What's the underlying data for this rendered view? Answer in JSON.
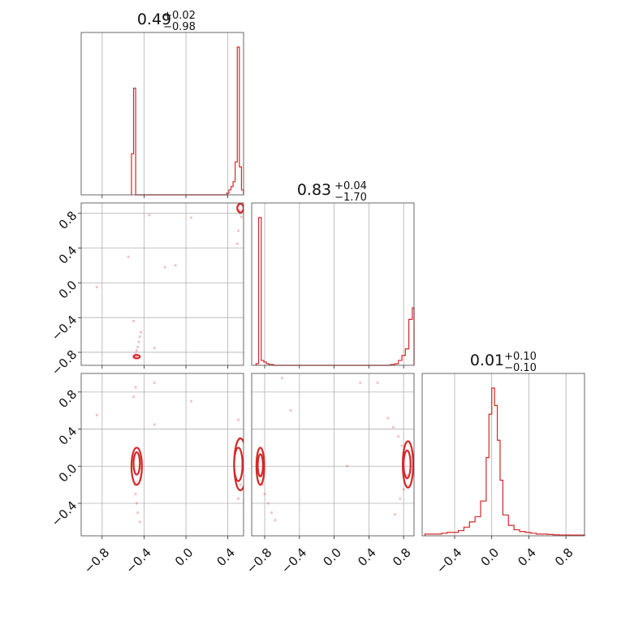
{
  "figure": {
    "type": "corner",
    "line_color": "#d62728"
  },
  "chart_data": [
    {
      "panel": "hist-0",
      "type": "bar",
      "title": {
        "value": "0.49",
        "upper": "+0.02",
        "lower": "−0.98"
      },
      "xlim": [
        -1.0,
        0.55
      ],
      "xticks": [
        -0.8,
        -0.4,
        0.0,
        0.4
      ],
      "bins_x": [
        -0.52,
        -0.5,
        -0.48,
        -0.46,
        0.39,
        0.41,
        0.43,
        0.45,
        0.47,
        0.49,
        0.51,
        0.53,
        0.55
      ],
      "counts": [
        0.25,
        0.65,
        0.0,
        0.0,
        0.01,
        0.03,
        0.05,
        0.08,
        0.2,
        0.9,
        0.17,
        0.03
      ]
    },
    {
      "panel": "hist-1",
      "type": "bar",
      "title": {
        "value": "0.83",
        "upper": "+0.04",
        "lower": "−1.70"
      },
      "xlim": [
        -0.95,
        0.92
      ],
      "xticks": [
        -0.8,
        -0.4,
        0.0,
        0.4,
        0.8
      ],
      "bins_x": [
        -0.9,
        -0.87,
        -0.84,
        -0.81,
        -0.78,
        -0.75,
        -0.7,
        0.65,
        0.7,
        0.74,
        0.78,
        0.82,
        0.86,
        0.9,
        0.92
      ],
      "counts": [
        0.01,
        0.9,
        0.03,
        0.02,
        0.01,
        0.005,
        0.0,
        0.005,
        0.01,
        0.03,
        0.06,
        0.1,
        0.28,
        0.35
      ],
      "yticks": [
        -0.8,
        -0.4,
        0.0,
        0.4,
        0.8
      ]
    },
    {
      "panel": "hist-2",
      "type": "bar",
      "title": {
        "value": "0.01",
        "upper": "+0.10",
        "lower": "−0.10"
      },
      "xlim": [
        -0.75,
        1.0
      ],
      "xticks": [
        -0.4,
        0.0,
        0.4,
        0.8
      ],
      "bins_x": [
        -0.72,
        -0.66,
        -0.6,
        -0.54,
        -0.48,
        -0.42,
        -0.36,
        -0.3,
        -0.24,
        -0.18,
        -0.12,
        -0.06,
        -0.03,
        0.0,
        0.03,
        0.06,
        0.09,
        0.12,
        0.18,
        0.24,
        0.3,
        0.36,
        0.42,
        0.48,
        0.54,
        0.6,
        0.66,
        0.72,
        0.78,
        0.84,
        0.9,
        0.96,
        1.0
      ],
      "counts": [
        0.01,
        0.01,
        0.01,
        0.015,
        0.02,
        0.02,
        0.03,
        0.05,
        0.08,
        0.11,
        0.2,
        0.45,
        0.7,
        0.85,
        0.75,
        0.55,
        0.32,
        0.12,
        0.06,
        0.035,
        0.025,
        0.02,
        0.015,
        0.01,
        0.01,
        0.008,
        0.006,
        0.005,
        0.005,
        0.004,
        0.004,
        0.004
      ],
      "yticks": [
        -0.4,
        0.0,
        0.4,
        0.8
      ]
    },
    {
      "panel": "scatter-1-0",
      "type": "scatter",
      "xlim": [
        -1.0,
        0.55
      ],
      "ylim": [
        -0.95,
        0.92
      ],
      "yticks": [
        -0.8,
        -0.4,
        0.0,
        0.4,
        0.8
      ],
      "points": [
        [
          -0.48,
          -0.86
        ],
        [
          -0.47,
          -0.84
        ],
        [
          -0.48,
          -0.82
        ],
        [
          -0.47,
          -0.78
        ],
        [
          -0.46,
          -0.74
        ],
        [
          -0.45,
          -0.68
        ],
        [
          -0.44,
          -0.62
        ],
        [
          -0.43,
          -0.57
        ],
        [
          -0.5,
          -0.44
        ],
        [
          -0.55,
          0.3
        ],
        [
          -0.2,
          0.18
        ],
        [
          -0.1,
          0.2
        ],
        [
          0.05,
          0.75
        ],
        [
          -0.35,
          0.78
        ],
        [
          0.5,
          0.9
        ],
        [
          0.51,
          0.84
        ],
        [
          0.52,
          0.8
        ],
        [
          0.53,
          0.76
        ],
        [
          0.5,
          0.6
        ],
        [
          0.49,
          0.45
        ],
        [
          -0.3,
          -0.75
        ],
        [
          -0.85,
          -0.05
        ]
      ],
      "contours": [
        [
          -0.47,
          -0.85,
          0.03,
          0.02
        ],
        [
          0.52,
          0.86,
          0.03,
          0.05
        ]
      ]
    },
    {
      "panel": "scatter-2-0",
      "type": "scatter",
      "xlim": [
        -1.0,
        0.55
      ],
      "ylim": [
        -0.75,
        1.0
      ],
      "points": [
        [
          -0.48,
          0.85
        ],
        [
          -0.5,
          0.75
        ],
        [
          -0.49,
          -0.2
        ],
        [
          -0.48,
          -0.3
        ],
        [
          -0.47,
          -0.4
        ],
        [
          -0.46,
          -0.5
        ],
        [
          -0.44,
          -0.6
        ],
        [
          -0.3,
          0.9
        ],
        [
          0.05,
          0.7
        ],
        [
          -0.3,
          0.45
        ],
        [
          0.5,
          0.5
        ],
        [
          0.51,
          0.3
        ],
        [
          0.52,
          -0.2
        ],
        [
          0.5,
          -0.35
        ],
        [
          -0.85,
          0.55
        ]
      ],
      "contours": [
        [
          -0.47,
          0.03,
          0.03,
          0.12
        ],
        [
          -0.47,
          0.0,
          0.05,
          0.2
        ],
        [
          0.5,
          0.02,
          0.04,
          0.18
        ],
        [
          0.52,
          0.02,
          0.06,
          0.28
        ]
      ]
    },
    {
      "panel": "scatter-2-1",
      "type": "scatter",
      "xlim": [
        -0.95,
        0.92
      ],
      "ylim": [
        -0.75,
        1.0
      ],
      "points": [
        [
          -0.85,
          -0.1
        ],
        [
          -0.83,
          -0.2
        ],
        [
          -0.8,
          -0.3
        ],
        [
          -0.76,
          -0.4
        ],
        [
          -0.72,
          -0.5
        ],
        [
          -0.68,
          -0.58
        ],
        [
          0.62,
          0.52
        ],
        [
          0.68,
          0.42
        ],
        [
          0.74,
          0.32
        ],
        [
          0.78,
          0.22
        ],
        [
          0.84,
          -0.1
        ],
        [
          0.8,
          -0.25
        ],
        [
          0.76,
          -0.35
        ],
        [
          0.3,
          0.9
        ],
        [
          0.5,
          0.9
        ],
        [
          -0.5,
          0.6
        ],
        [
          -0.6,
          0.95
        ],
        [
          0.15,
          0.0
        ],
        [
          0.7,
          -0.52
        ]
      ],
      "contours": [
        [
          -0.85,
          0.01,
          0.03,
          0.12
        ],
        [
          -0.85,
          0.0,
          0.045,
          0.2
        ],
        [
          0.84,
          0.02,
          0.04,
          0.15
        ],
        [
          0.85,
          0.02,
          0.06,
          0.25
        ]
      ]
    }
  ],
  "tick_labels": {
    "x_col0": [
      "−0.8",
      "−0.4",
      "0.0",
      "0.4"
    ],
    "x_col1": [
      "−0.8",
      "−0.4",
      "0.0",
      "0.4",
      "0.8"
    ],
    "x_col2": [
      "−0.4",
      "0.0",
      "0.4",
      "0.8"
    ],
    "y_row1": [
      "−0.8",
      "−0.4",
      "0.0",
      "0.4",
      "0.8"
    ],
    "y_row2": [
      "−0.4",
      "0.0",
      "0.4",
      "0.8"
    ]
  }
}
